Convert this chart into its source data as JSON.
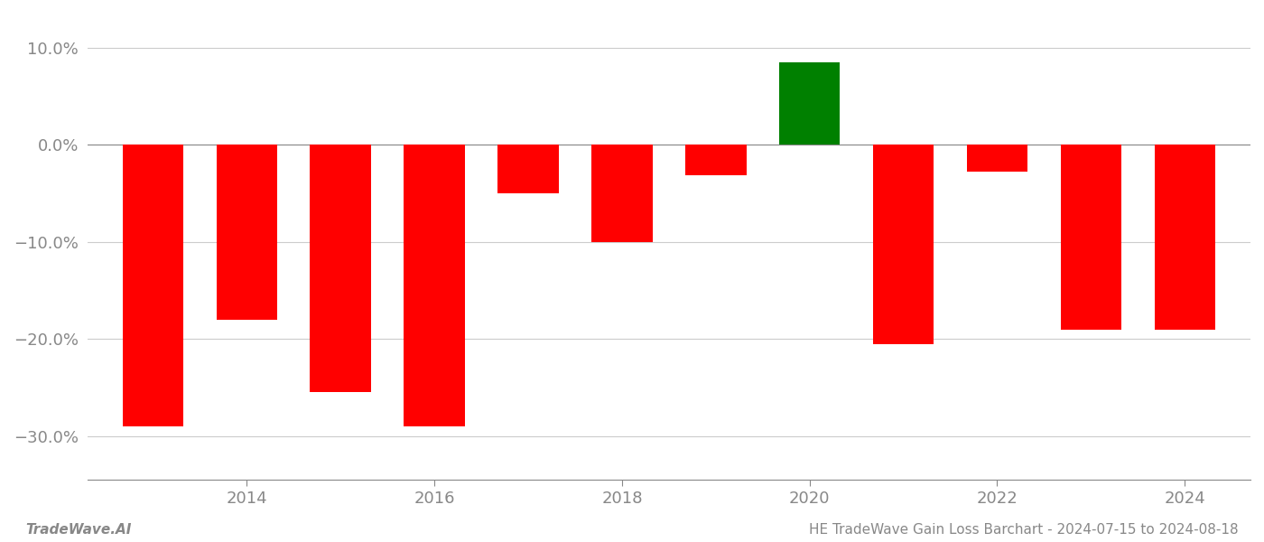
{
  "years": [
    2013,
    2014,
    2015,
    2016,
    2017,
    2018,
    2019,
    2020,
    2021,
    2022,
    2023,
    2024
  ],
  "values": [
    -0.29,
    -0.18,
    -0.255,
    -0.29,
    -0.05,
    -0.1,
    -0.031,
    0.085,
    -0.205,
    -0.028,
    -0.19,
    -0.19
  ],
  "colors": [
    "#ff0000",
    "#ff0000",
    "#ff0000",
    "#ff0000",
    "#ff0000",
    "#ff0000",
    "#ff0000",
    "#008000",
    "#ff0000",
    "#ff0000",
    "#ff0000",
    "#ff0000"
  ],
  "ylim": [
    -0.345,
    0.135
  ],
  "yticks": [
    -0.3,
    -0.2,
    -0.1,
    0.0,
    0.1
  ],
  "ytick_labels": [
    "−30.0%",
    "−20.0%",
    "−10.0%",
    "0.0%",
    "10.0%"
  ],
  "xticks": [
    2014,
    2016,
    2018,
    2020,
    2022,
    2024
  ],
  "bar_width": 0.65,
  "background_color": "#ffffff",
  "grid_color": "#cccccc",
  "axis_color": "#888888",
  "tick_color": "#888888",
  "footer_left": "TradeWave.AI",
  "footer_right": "HE TradeWave Gain Loss Barchart - 2024-07-15 to 2024-08-18",
  "footer_fontsize": 11,
  "xlim_left": 2012.3,
  "xlim_right": 2024.7
}
